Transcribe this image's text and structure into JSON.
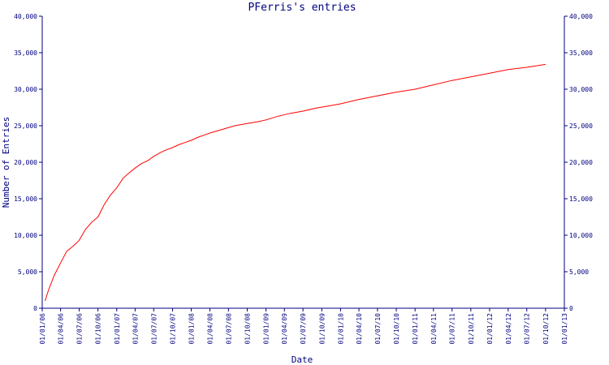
{
  "chart_data": {
    "type": "line",
    "title": "PFerris's entries",
    "xlabel": "Date",
    "ylabel": "Number of Entries",
    "ylim": [
      0,
      40000
    ],
    "y_ticks": [
      0,
      5000,
      10000,
      15000,
      20000,
      25000,
      30000,
      35000,
      40000
    ],
    "y_tick_labels": [
      "0",
      "5,000",
      "10,000",
      "15,000",
      "20,000",
      "25,000",
      "30,000",
      "35,000",
      "40,000"
    ],
    "x_tick_labels": [
      "01/01/06",
      "01/04/06",
      "01/07/06",
      "01/10/06",
      "01/01/07",
      "01/04/07",
      "01/07/07",
      "01/10/07",
      "01/01/08",
      "01/04/08",
      "01/07/08",
      "01/10/08",
      "01/01/09",
      "01/04/09",
      "01/07/09",
      "01/10/09",
      "01/01/10",
      "01/04/10",
      "01/07/10",
      "01/10/10",
      "01/01/11",
      "01/04/11",
      "01/07/11",
      "01/10/11",
      "01/01/12",
      "01/04/12",
      "01/07/12",
      "01/10/12",
      "01/01/13"
    ],
    "grid": false,
    "right_axis": true,
    "line_color": "#ff0000",
    "axis_color": "#000080",
    "series": [
      {
        "x": [
          "2006-01-15",
          "2006-02-01",
          "2006-03-01",
          "2006-04-01",
          "2006-05-01",
          "2006-06-01",
          "2006-07-01",
          "2006-08-01",
          "2006-09-01",
          "2006-10-01",
          "2006-11-01",
          "2006-12-01",
          "2007-01-01",
          "2007-02-01",
          "2007-03-01",
          "2007-04-01",
          "2007-05-01",
          "2007-06-01",
          "2007-07-01",
          "2007-08-01",
          "2007-09-01",
          "2007-10-01",
          "2007-11-01",
          "2007-12-01",
          "2008-01-01",
          "2008-02-01",
          "2008-04-01",
          "2008-06-01",
          "2008-08-01",
          "2008-10-01",
          "2008-12-01",
          "2009-01-01",
          "2009-03-01",
          "2009-05-01",
          "2009-07-01",
          "2009-09-01",
          "2009-11-01",
          "2010-01-01",
          "2010-04-01",
          "2010-07-01",
          "2010-10-01",
          "2011-01-01",
          "2011-04-01",
          "2011-07-01",
          "2011-10-01",
          "2012-01-01",
          "2012-04-01",
          "2012-07-01",
          "2012-10-01"
        ],
        "values": [
          1000,
          2500,
          4500,
          6200,
          7800,
          8500,
          9300,
          10800,
          11800,
          12500,
          14200,
          15500,
          16500,
          17800,
          18500,
          19200,
          19800,
          20200,
          20800,
          21300,
          21700,
          22000,
          22400,
          22700,
          23000,
          23400,
          24000,
          24500,
          25000,
          25300,
          25600,
          25800,
          26300,
          26700,
          27000,
          27400,
          27700,
          28000,
          28600,
          29100,
          29600,
          30000,
          30600,
          31200,
          31700,
          32200,
          32700,
          33000,
          33400
        ]
      }
    ]
  }
}
